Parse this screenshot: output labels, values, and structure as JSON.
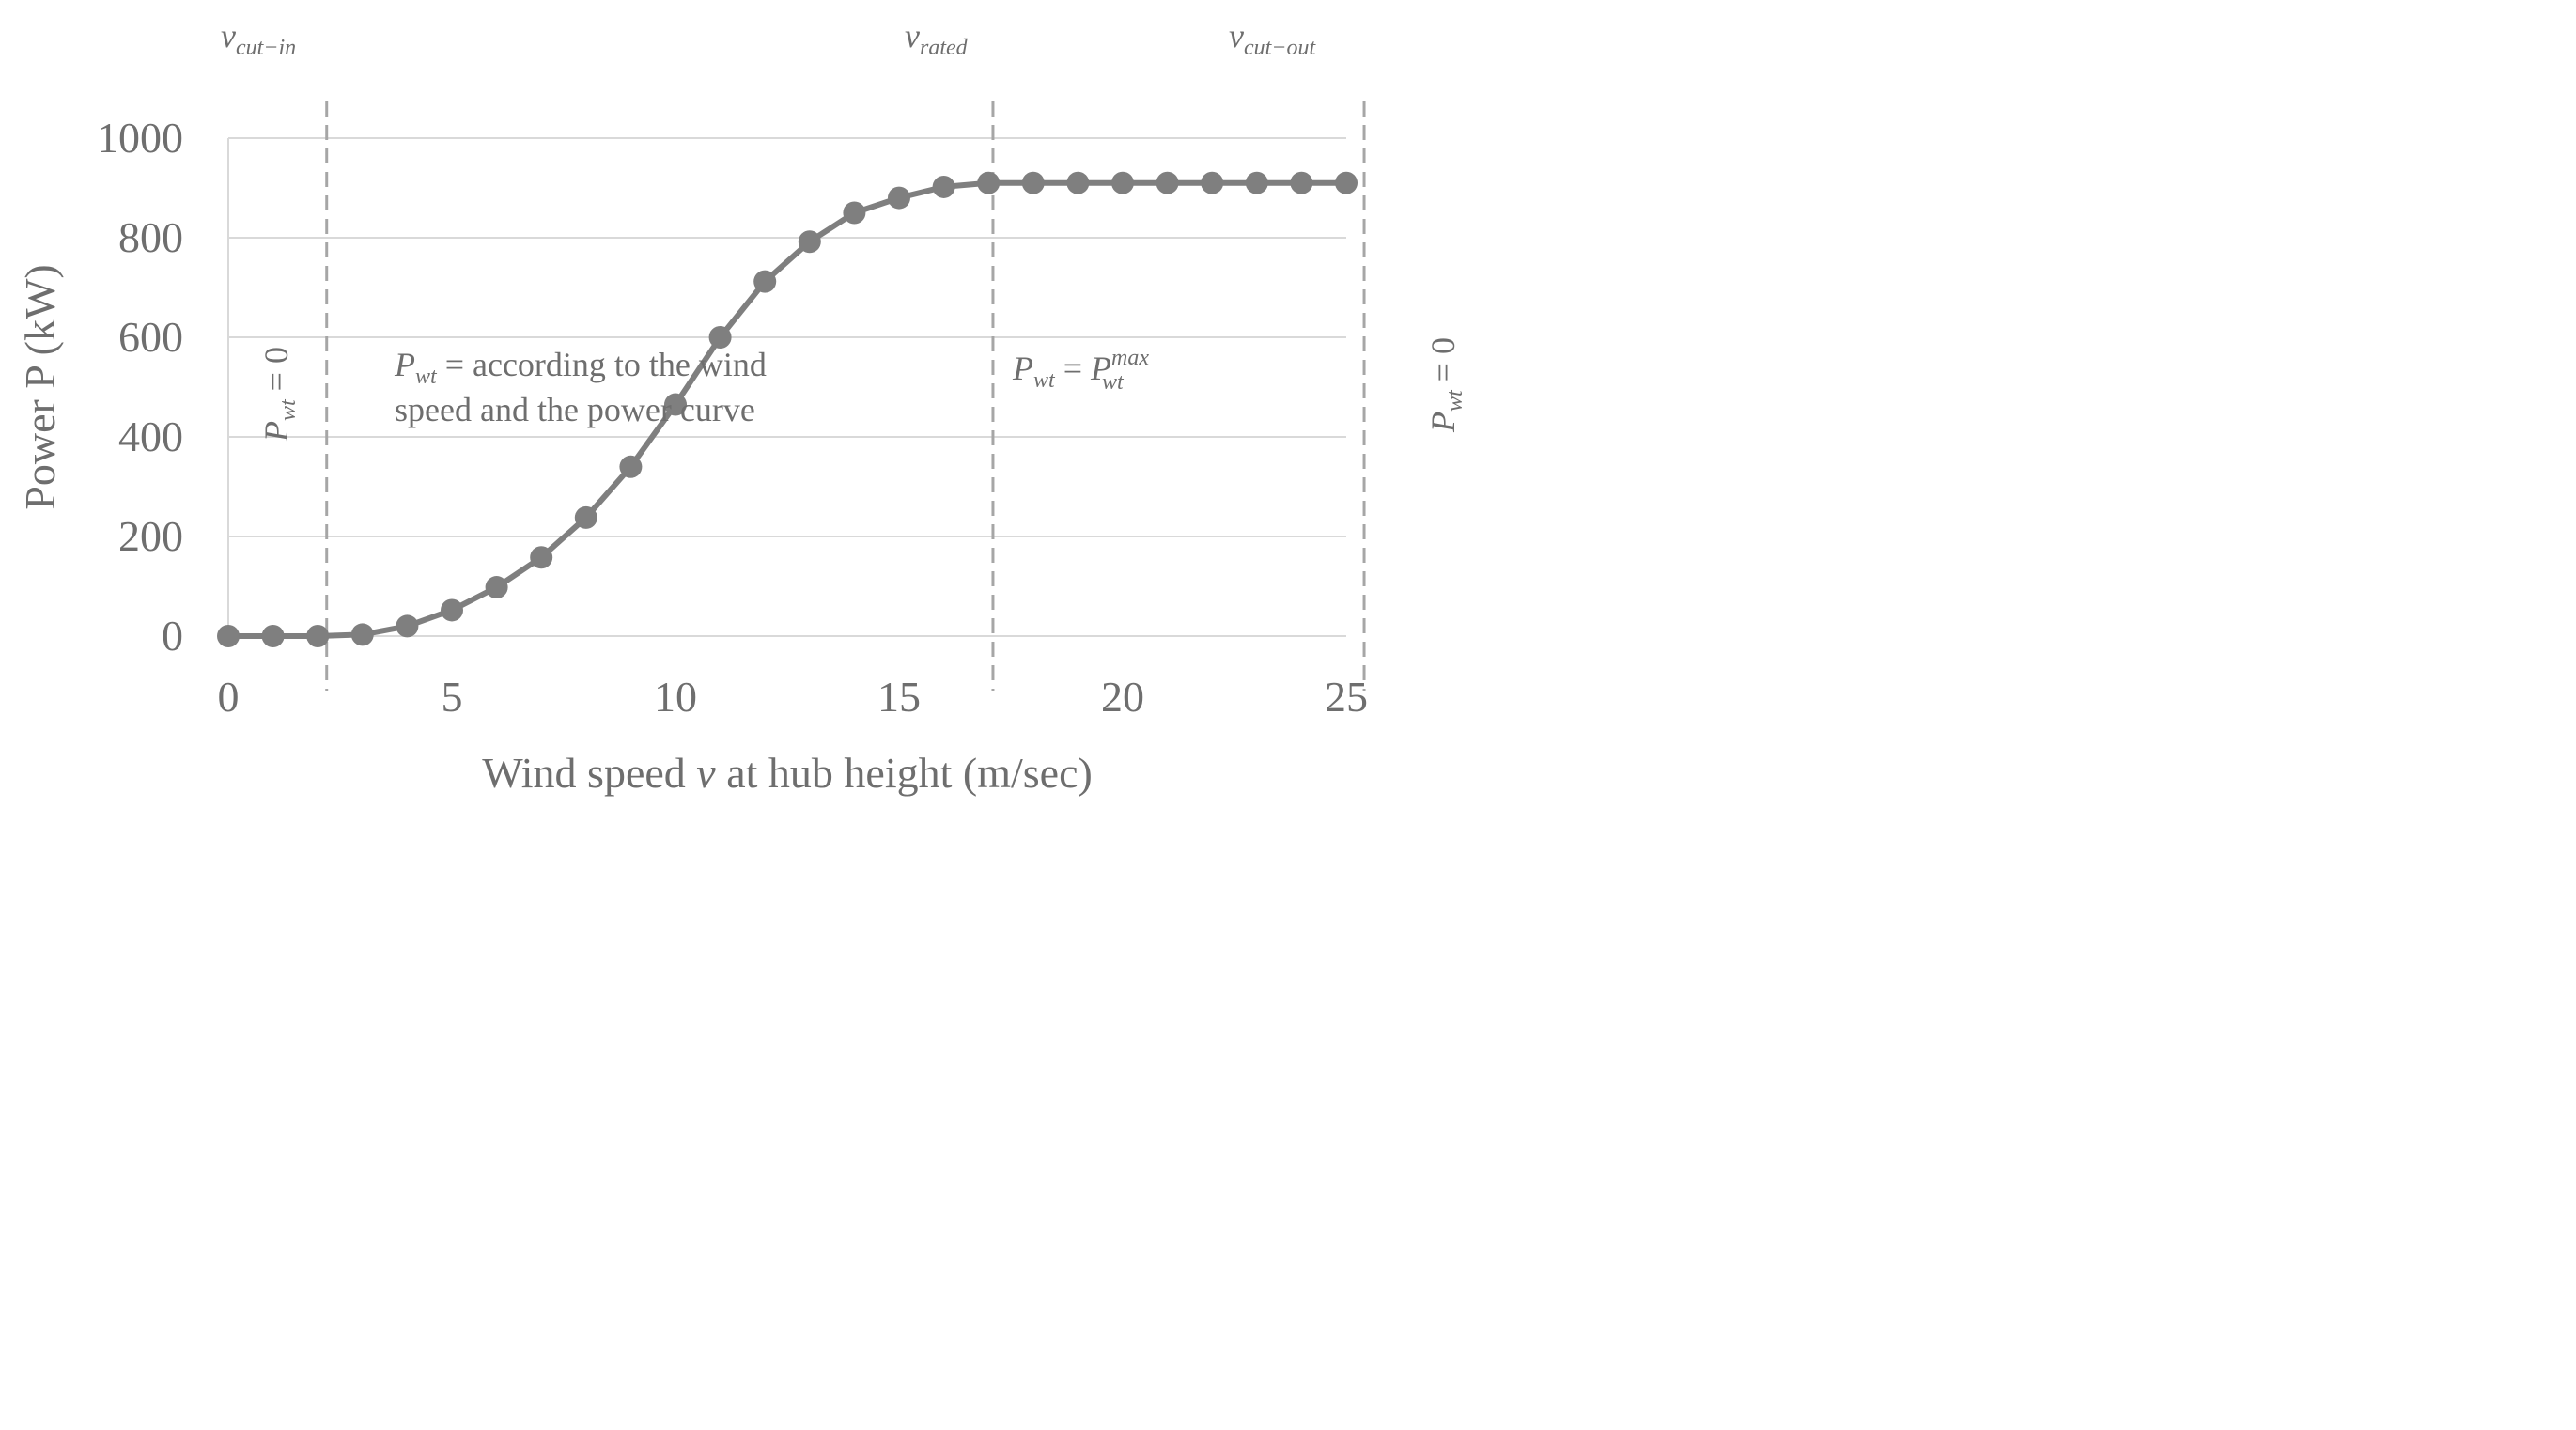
{
  "chart_data": {
    "type": "line",
    "xlabel": {
      "before": "Wind speed ",
      "var": "v",
      "after": " at hub height (m/sec)"
    },
    "ylabel": "Power P (kW)",
    "xlim": [
      0,
      25
    ],
    "ylim": [
      0,
      1000
    ],
    "xticks": [
      0,
      5,
      10,
      15,
      20,
      25
    ],
    "yticks": [
      0,
      200,
      400,
      600,
      800,
      1000
    ],
    "grid": "horizontal",
    "series": [
      {
        "x": [
          0,
          1,
          2,
          3,
          4,
          5,
          6,
          7,
          8,
          9,
          10,
          11,
          12,
          13,
          14,
          15,
          16,
          17,
          18,
          19,
          20,
          21,
          22,
          23,
          24,
          25
        ],
        "values": [
          0,
          0,
          0,
          3,
          20,
          52,
          98,
          158,
          238,
          340,
          465,
          600,
          712,
          792,
          850,
          880,
          902,
          910,
          910,
          910,
          910,
          910,
          910,
          910,
          910,
          910
        ],
        "color": "#7f7f7f"
      }
    ],
    "vlines": [
      {
        "x": 2.2,
        "label_main": "v",
        "label_sub": "cut−in"
      },
      {
        "x": 17.1,
        "label_main": "v",
        "label_sub": "rated"
      },
      {
        "x": 25.4,
        "label_main": "v",
        "label_sub": "cut−out"
      }
    ],
    "annotations": {
      "region1": {
        "p": "P",
        "sub": "wt",
        "rest": " = 0"
      },
      "region2": {
        "p": "P",
        "sub": "wt",
        "line1": " = according to the  wind",
        "line2": "speed and  the power curve"
      },
      "region3": {
        "p": "P",
        "sub": "wt",
        "eq": " = ",
        "p2": "P",
        "sub2": "wt",
        "sup2": "max"
      },
      "region4": {
        "p": "P",
        "sub": "wt",
        "rest": " = 0"
      }
    },
    "colors": {
      "line": "#7f7f7f",
      "marker": "#7f7f7f",
      "grid": "#d9d9d9",
      "axis": "#d9d9d9",
      "dash": "#a6a6a6",
      "text": "#6e6e6e"
    }
  }
}
